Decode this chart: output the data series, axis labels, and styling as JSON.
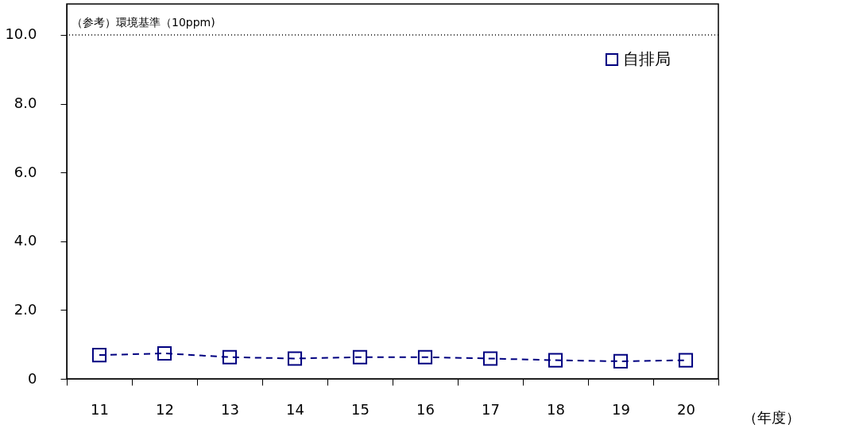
{
  "chart_data": {
    "type": "line",
    "xlabel": "（年度）",
    "categories": [
      "11",
      "12",
      "13",
      "14",
      "15",
      "16",
      "17",
      "18",
      "19",
      "20"
    ],
    "series": [
      {
        "name": "自排局",
        "color": "#000080",
        "values": [
          0.69,
          0.74,
          0.63,
          0.59,
          0.63,
          0.63,
          0.59,
          0.54,
          0.51,
          0.54
        ]
      }
    ],
    "ylim": [
      0,
      10.9
    ],
    "yticks": [
      0,
      {
        "value": 2,
        "label": "2.0"
      },
      {
        "value": 4,
        "label": "4.0"
      },
      {
        "value": 6,
        "label": "6.0"
      },
      {
        "value": 8,
        "label": "8.0"
      },
      {
        "value": 10,
        "label": "10.0"
      }
    ],
    "ref_lines": [
      {
        "axis": "y",
        "value": 10,
        "label": "（参考）環境基準（10ppm)",
        "color": "#000000",
        "line_style": "dotted"
      }
    ],
    "marker": "square",
    "line_style": "dashed",
    "grid": false,
    "legend": "top right"
  }
}
